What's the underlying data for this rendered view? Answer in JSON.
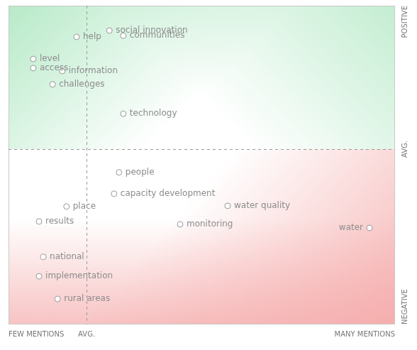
{
  "chart_data": {
    "type": "scatter",
    "points": [
      {
        "label": "help",
        "x": 17.6,
        "y": 90.2
      },
      {
        "label": "social innovation",
        "x": 26.1,
        "y": 92.2
      },
      {
        "label": "communities",
        "x": 29.7,
        "y": 90.6
      },
      {
        "label": "level",
        "x": 6.4,
        "y": 83.3
      },
      {
        "label": "access",
        "x": 6.4,
        "y": 80.4
      },
      {
        "label": "information",
        "x": 13.9,
        "y": 79.5
      },
      {
        "label": "challenges",
        "x": 11.4,
        "y": 75.3
      },
      {
        "label": "technology",
        "x": 29.7,
        "y": 66.1
      },
      {
        "label": "people",
        "x": 28.6,
        "y": 47.7
      },
      {
        "label": "capacity development",
        "x": 27.3,
        "y": 41.0
      },
      {
        "label": "place",
        "x": 15.0,
        "y": 37.0
      },
      {
        "label": "water quality",
        "x": 56.7,
        "y": 37.2
      },
      {
        "label": "results",
        "x": 7.9,
        "y": 32.3
      },
      {
        "label": "monitoring",
        "x": 44.4,
        "y": 31.4
      },
      {
        "label": "water",
        "x": 93.4,
        "y": 30.3
      },
      {
        "label": "national",
        "x": 9.0,
        "y": 21.2
      },
      {
        "label": "implementation",
        "x": 7.9,
        "y": 15.1
      },
      {
        "label": "rural areas",
        "x": 12.7,
        "y": 8.0
      }
    ],
    "xlim": [
      0,
      100
    ],
    "ylim": [
      0,
      100
    ],
    "xticks": [
      {
        "value": 0,
        "label": "FEW MENTIONS"
      },
      {
        "value": 20.2,
        "label": "AVG."
      },
      {
        "value": 100,
        "label": "MANY MENTIONS"
      }
    ],
    "yticks": [
      {
        "value": 0,
        "label": "NEGATIVE"
      },
      {
        "value": 55,
        "label": "AVG."
      },
      {
        "value": 100,
        "label": "POSITIVE"
      }
    ],
    "grid": true,
    "color": "#9a9a9a",
    "marker": "circle"
  }
}
